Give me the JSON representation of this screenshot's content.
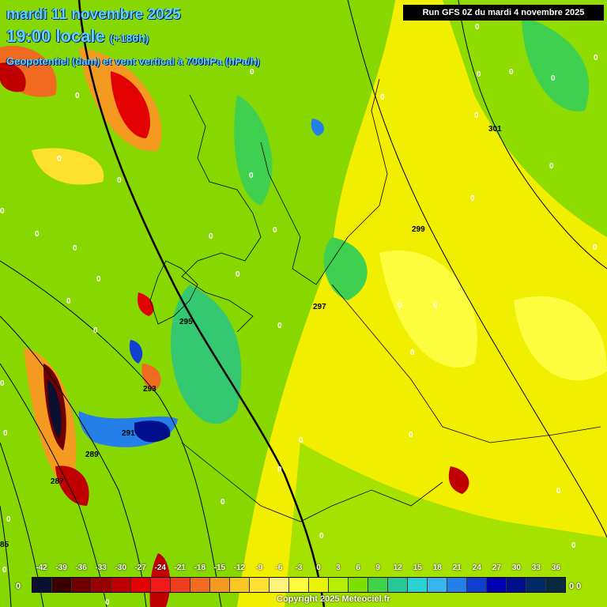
{
  "header": {
    "date_line": "mardi 11 novembre 2025",
    "time_line": "19:00 locale",
    "lead_time": "(+186h)",
    "field_line": "Geopotentiel (dam) et vent vertical à 700hPa (hPa/h)",
    "run_info": "Run GFS 0Z du mardi 4 novembre 2025"
  },
  "legend": {
    "values": [
      "-42",
      "-39",
      "-36",
      "-33",
      "-30",
      "-27",
      "-24",
      "-21",
      "-18",
      "-15",
      "-12",
      "-9",
      "-6",
      "-3",
      "0",
      "3",
      "6",
      "9",
      "12",
      "15",
      "18",
      "21",
      "24",
      "27",
      "30",
      "33",
      "36"
    ],
    "colors": [
      "#0b1030",
      "#3a0000",
      "#700000",
      "#9a0000",
      "#c00000",
      "#e20000",
      "#f01818",
      "#f04020",
      "#f06a20",
      "#f49a20",
      "#f8c820",
      "#fde030",
      "#fff27a",
      "#fdfd40",
      "#e8f400",
      "#b4ee00",
      "#7ee000",
      "#40d24a",
      "#26c896",
      "#2ad2d2",
      "#38b4f0",
      "#2480e8",
      "#1040d0",
      "#0000b0",
      "#00108c",
      "#002a66",
      "#0a2a40"
    ]
  },
  "map_labels": {
    "isohypses": [
      "301",
      "299",
      "297",
      "295",
      "293",
      "291",
      "289",
      "287",
      "85"
    ],
    "zero_marks": [
      "0"
    ]
  },
  "colors": {
    "title": "#5fd3ff",
    "background_dominant": "#f2ee00",
    "green": "#7ed400"
  },
  "edge_labels": {
    "right": "0 0",
    "left": "0"
  },
  "footer": {
    "copyright": "Copyright 2025 Meteociel.fr"
  }
}
